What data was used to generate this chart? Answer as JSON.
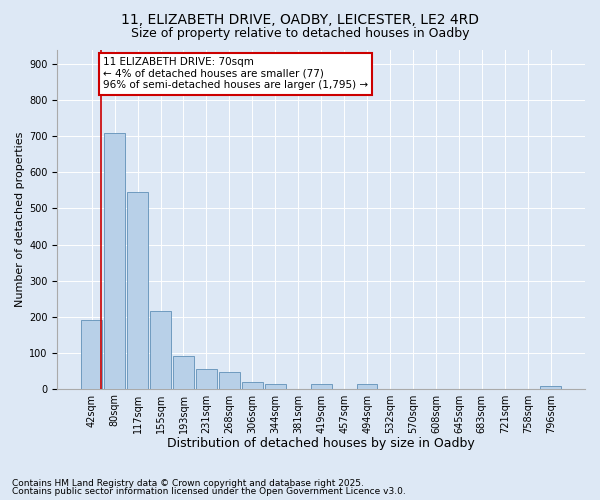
{
  "title1": "11, ELIZABETH DRIVE, OADBY, LEICESTER, LE2 4RD",
  "title2": "Size of property relative to detached houses in Oadby",
  "xlabel": "Distribution of detached houses by size in Oadby",
  "ylabel": "Number of detached properties",
  "categories": [
    "42sqm",
    "80sqm",
    "117sqm",
    "155sqm",
    "193sqm",
    "231sqm",
    "268sqm",
    "306sqm",
    "344sqm",
    "381sqm",
    "419sqm",
    "457sqm",
    "494sqm",
    "532sqm",
    "570sqm",
    "608sqm",
    "645sqm",
    "683sqm",
    "721sqm",
    "758sqm",
    "796sqm"
  ],
  "values": [
    190,
    710,
    545,
    215,
    90,
    55,
    45,
    17,
    12,
    0,
    13,
    0,
    13,
    0,
    0,
    0,
    0,
    0,
    0,
    0,
    7
  ],
  "bar_color": "#b8d0e8",
  "bar_edge_color": "#6090b8",
  "annotation_text": "11 ELIZABETH DRIVE: 70sqm\n← 4% of detached houses are smaller (77)\n96% of semi-detached houses are larger (1,795) →",
  "annotation_box_color": "#ffffff",
  "annotation_box_edge_color": "#cc0000",
  "vline_color": "#cc0000",
  "footer1": "Contains HM Land Registry data © Crown copyright and database right 2025.",
  "footer2": "Contains public sector information licensed under the Open Government Licence v3.0.",
  "bg_color": "#dde8f5",
  "plot_bg_color": "#dde8f5",
  "ylim": [
    0,
    940
  ],
  "yticks": [
    0,
    100,
    200,
    300,
    400,
    500,
    600,
    700,
    800,
    900
  ],
  "title1_fontsize": 10,
  "title2_fontsize": 9,
  "xlabel_fontsize": 9,
  "ylabel_fontsize": 8,
  "tick_fontsize": 7,
  "annotation_fontsize": 7.5,
  "footer_fontsize": 6.5
}
